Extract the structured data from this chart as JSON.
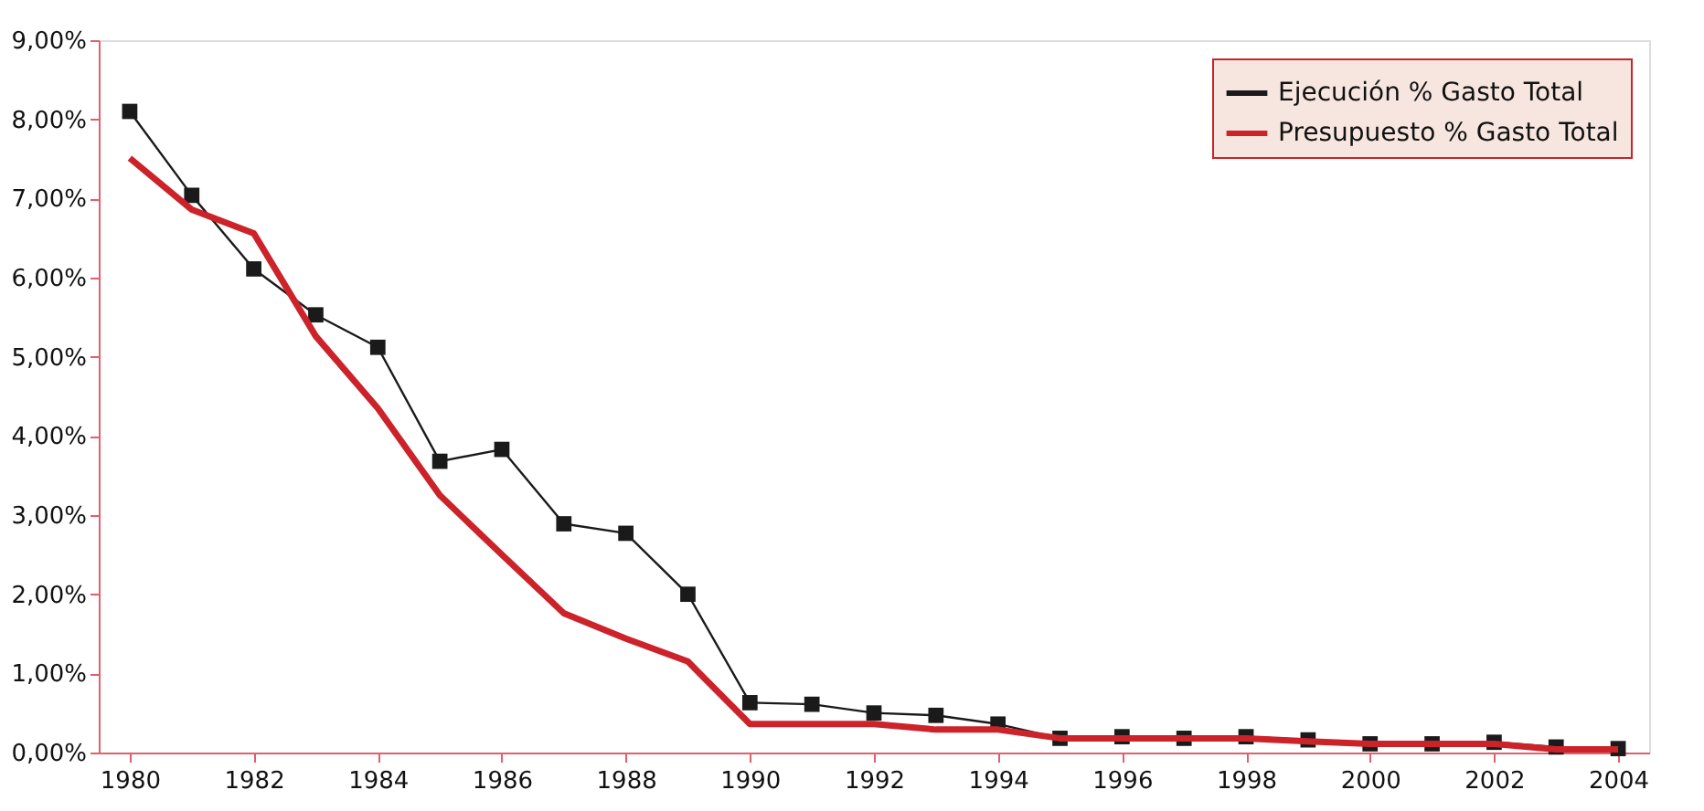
{
  "chart_data": {
    "type": "line",
    "x": [
      1980,
      1981,
      1982,
      1983,
      1984,
      1985,
      1986,
      1987,
      1988,
      1989,
      1990,
      1991,
      1992,
      1993,
      1994,
      1995,
      1996,
      1997,
      1998,
      1999,
      2000,
      2001,
      2002,
      2003,
      2004
    ],
    "series": [
      {
        "name": "Ejecución    % Gasto Total",
        "color": "#1a1a1a",
        "marker": "square",
        "values": [
          8.1,
          7.04,
          6.11,
          5.53,
          5.12,
          3.68,
          3.83,
          2.89,
          2.77,
          2.0,
          0.63,
          0.61,
          0.5,
          0.47,
          0.36,
          0.18,
          0.2,
          0.18,
          0.2,
          0.16,
          0.11,
          0.11,
          0.13,
          0.07,
          0.05
        ]
      },
      {
        "name": "Presupuesto % Gasto Total",
        "color": "#cc2229",
        "marker": "none",
        "values": [
          7.51,
          6.86,
          6.56,
          5.26,
          4.35,
          3.25,
          2.5,
          1.76,
          1.44,
          1.15,
          0.36,
          0.36,
          0.36,
          0.29,
          0.29,
          0.18,
          0.18,
          0.18,
          0.18,
          0.14,
          0.11,
          0.11,
          0.11,
          0.04,
          0.04
        ]
      }
    ],
    "xlim": [
      1979.5,
      2004.5
    ],
    "xticks": [
      1980,
      1982,
      1984,
      1986,
      1988,
      1990,
      1992,
      1994,
      1996,
      1998,
      2000,
      2002,
      2004
    ],
    "ylim": [
      0,
      9
    ],
    "yticks": [
      {
        "value": 0,
        "label": "0,00%"
      },
      {
        "value": 1,
        "label": "1,00%"
      },
      {
        "value": 2,
        "label": "2,00%"
      },
      {
        "value": 3,
        "label": "3,00%"
      },
      {
        "value": 4,
        "label": "4,00%"
      },
      {
        "value": 5,
        "label": "5,00%"
      },
      {
        "value": 6,
        "label": "6,00%"
      },
      {
        "value": 7,
        "label": "7,00%"
      },
      {
        "value": 8,
        "label": "8,00%"
      },
      {
        "value": 9,
        "label": "9,00%"
      }
    ],
    "grid": false,
    "legend": "top right",
    "line_style": "solid"
  }
}
